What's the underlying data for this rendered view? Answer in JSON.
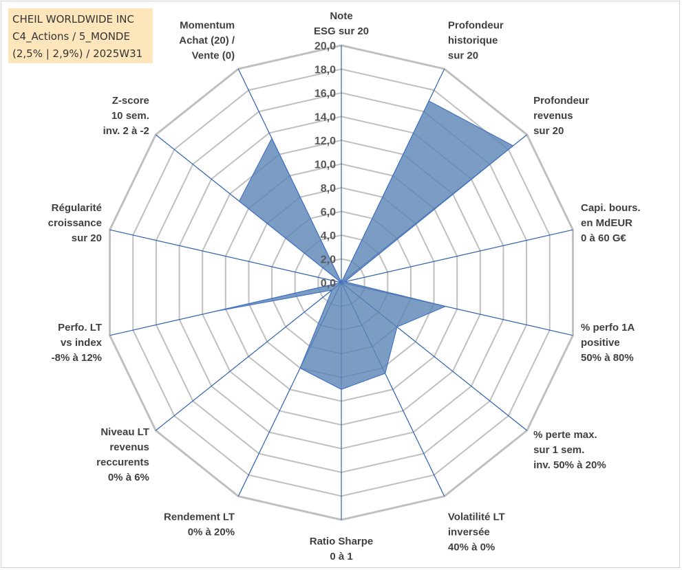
{
  "title": {
    "lines": [
      "CHEIL WORLDWIDE INC",
      "C4_Actions / 5_MONDE",
      "(2,5% | 2,9%) / 2025W31"
    ]
  },
  "chart_data": {
    "type": "radar",
    "axes": [
      {
        "label": [
          "Note",
          "ESG sur 20"
        ]
      },
      {
        "label": [
          "Profondeur",
          "historique",
          "sur 20"
        ]
      },
      {
        "label": [
          "Profondeur",
          "revenus",
          "sur 20"
        ]
      },
      {
        "label": [
          "Capi. bours.",
          "en MdEUR",
          "0 à 60 G€"
        ]
      },
      {
        "label": [
          "% perfo 1A",
          "positive",
          "50% à 80%"
        ]
      },
      {
        "label": [
          "% perte max.",
          "sur 1 sem.",
          "inv. 50% à 20%"
        ]
      },
      {
        "label": [
          "Volatilité LT",
          "inversée",
          "40% à 0%"
        ]
      },
      {
        "label": [
          "Ratio Sharpe",
          "0 à 1"
        ]
      },
      {
        "label": [
          "Rendement LT",
          "0% à 20%"
        ]
      },
      {
        "label": [
          "Niveau LT",
          "revenus",
          "reccurents",
          "0% à 6%"
        ]
      },
      {
        "label": [
          "Perfo. LT",
          "vs index",
          "-8% à 12%"
        ]
      },
      {
        "label": [
          "Régularité",
          "croissance",
          "sur 20"
        ]
      },
      {
        "label": [
          "Z-score",
          "10 sem.",
          "inv. 2 à -2"
        ]
      },
      {
        "label": [
          "Momentum",
          "Achat (20) /",
          "Vente (0)"
        ]
      }
    ],
    "series": [
      {
        "values": [
          0.0,
          17.0,
          18.5,
          0.3,
          9.0,
          6.0,
          8.5,
          9.0,
          8.0,
          1.0,
          11.0,
          0.0,
          11.0,
          13.5
        ]
      }
    ],
    "rmin": 0,
    "rmax": 20,
    "tick_step": 2,
    "tick_labels": [
      "0,0",
      "2,0",
      "4,0",
      "6,0",
      "8,0",
      "10,0",
      "12,0",
      "14,0",
      "16,0",
      "18,0",
      "20,0"
    ],
    "colors": {
      "fill": "#5b84b4",
      "line": "#4472c4",
      "grid": "#bfbfbf",
      "spoke": "#2f5fb0",
      "title_bg": "#fde6bc"
    }
  }
}
